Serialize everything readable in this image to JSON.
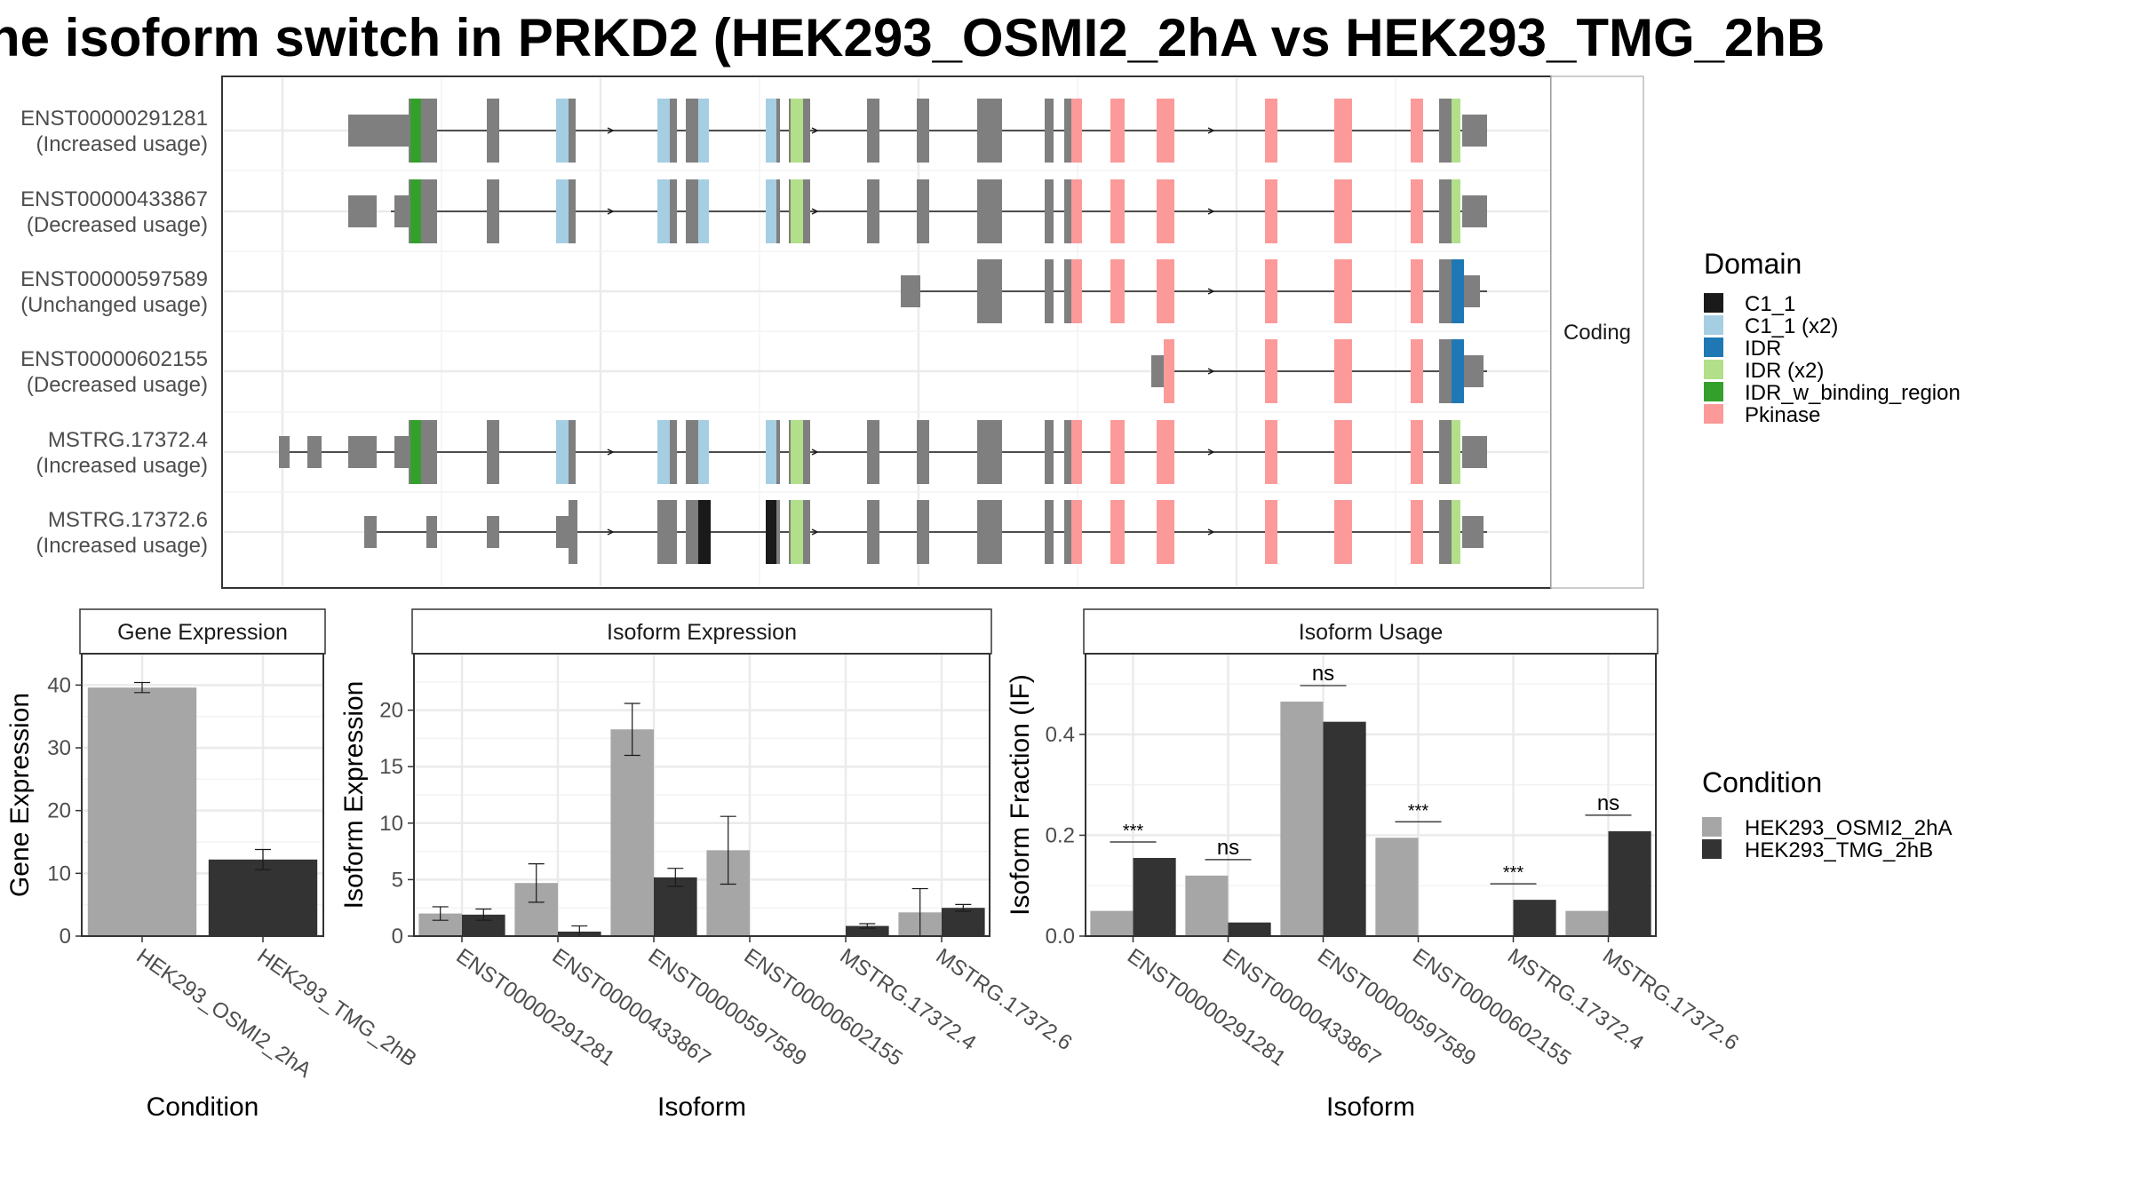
{
  "title": "he isoform switch in PRKD2 (HEK293_OSMI2_2hA vs HEK293_TMG_2hB",
  "colors": {
    "C1_1": "#1a1a1a",
    "C1_1 (x2)": "#a6cee3",
    "IDR": "#1f78b4",
    "IDR (x2)": "#b2df8a",
    "IDR_w_binding_region": "#33a02c",
    "Pkinase": "#fb9a99",
    "exon": "#7f7f7f",
    "cond1": "#a6a6a6",
    "cond2": "#333333"
  },
  "structure": {
    "facet_label": "Coding",
    "transcripts": [
      {
        "id": "ENST00000291281",
        "usage": "(Increased usage)"
      },
      {
        "id": "ENST00000433867",
        "usage": "(Decreased usage)"
      },
      {
        "id": "ENST00000597589",
        "usage": "(Unchanged usage)"
      },
      {
        "id": "ENST00000602155",
        "usage": "(Decreased usage)"
      },
      {
        "id": "MSTRG.17372.4",
        "usage": "(Increased usage)"
      },
      {
        "id": "MSTRG.17372.6",
        "usage": "(Increased usage)"
      }
    ]
  },
  "legend_domain": {
    "title": "Domain",
    "items": [
      "C1_1",
      "C1_1 (x2)",
      "IDR",
      "IDR (x2)",
      "IDR_w_binding_region",
      "Pkinase"
    ]
  },
  "legend_condition": {
    "title": "Condition",
    "items": [
      "HEK293_OSMI2_2hA",
      "HEK293_TMG_2hB"
    ]
  },
  "chart_data": [
    {
      "type": "bar",
      "title": "Gene Expression",
      "xlabel": "Condition",
      "ylabel": "Gene Expression",
      "categories": [
        "HEK293_OSMI2_2hA",
        "HEK293_TMG_2hB"
      ],
      "values": [
        39.6,
        12.2
      ],
      "errors": [
        [
          38.8,
          40.4
        ],
        [
          10.6,
          13.8
        ]
      ],
      "ylim": [
        0,
        45
      ],
      "yticks": [
        0,
        10,
        20,
        30,
        40
      ]
    },
    {
      "type": "bar",
      "title": "Isoform Expression",
      "xlabel": "Isoform",
      "ylabel": "Isoform Expression",
      "categories": [
        "ENST00000291281",
        "ENST00000433867",
        "ENST00000597589",
        "ENST00000602155",
        "MSTRG.17372.4",
        "MSTRG.17372.6"
      ],
      "series": [
        {
          "name": "HEK293_OSMI2_2hA",
          "values": [
            2.0,
            4.7,
            18.3,
            7.6,
            0.0,
            2.1
          ],
          "errors": [
            [
              1.4,
              2.6
            ],
            [
              3.0,
              6.4
            ],
            [
              16.0,
              20.6
            ],
            [
              4.6,
              10.6
            ],
            [
              0,
              0
            ],
            [
              0,
              4.2
            ]
          ]
        },
        {
          "name": "HEK293_TMG_2hB",
          "values": [
            1.9,
            0.4,
            5.2,
            0.0,
            0.9,
            2.5
          ],
          "errors": [
            [
              1.4,
              2.4
            ],
            [
              0,
              0.9
            ],
            [
              4.4,
              6.0
            ],
            [
              0,
              0
            ],
            [
              0.7,
              1.1
            ],
            [
              2.2,
              2.8
            ]
          ]
        }
      ],
      "ylim": [
        0,
        25
      ],
      "yticks": [
        0,
        5,
        10,
        15,
        20
      ]
    },
    {
      "type": "bar",
      "title": "Isoform Usage",
      "xlabel": "Isoform",
      "ylabel": "Isoform Fraction (IF)",
      "categories": [
        "ENST00000291281",
        "ENST00000433867",
        "ENST00000597589",
        "ENST00000602155",
        "MSTRG.17372.4",
        "MSTRG.17372.6"
      ],
      "series": [
        {
          "name": "HEK293_OSMI2_2hA",
          "values": [
            0.05,
            0.12,
            0.465,
            0.195,
            0.0,
            0.05
          ]
        },
        {
          "name": "HEK293_TMG_2hB",
          "values": [
            0.155,
            0.027,
            0.425,
            0.0,
            0.072,
            0.208
          ]
        }
      ],
      "significance": [
        "***",
        "ns",
        "ns",
        "***",
        "***",
        "ns"
      ],
      "ylim": [
        0,
        0.56
      ],
      "yticks": [
        0.0,
        0.2,
        0.4
      ]
    }
  ]
}
